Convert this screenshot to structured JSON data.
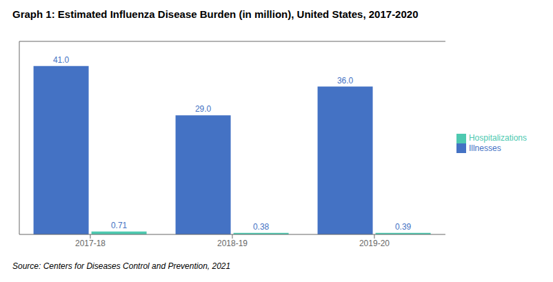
{
  "chart_data": {
    "type": "bar",
    "title": "Graph 1: Estimated Influenza Disease Burden (in million), United States, 2017-2020",
    "annotations": [
      "Source: Centers for Diseases Control and Prevention, 2021"
    ],
    "categories": [
      "2017-18",
      "2018-19",
      "2019-20"
    ],
    "series": [
      {
        "name": "Illnesses",
        "color": "#4472C4",
        "values": [
          41.0,
          29.0,
          36.0
        ],
        "value_labels": [
          "41.0",
          "29.0",
          "36.0"
        ]
      },
      {
        "name": "Hospitalizations",
        "color": "#4EC9B0",
        "values": [
          0.71,
          0.38,
          0.39
        ]
      }
    ],
    "ylim": [
      0,
      47
    ],
    "grid": false,
    "legend": "right",
    "data_labels": true,
    "tick_labels": "x"
  }
}
